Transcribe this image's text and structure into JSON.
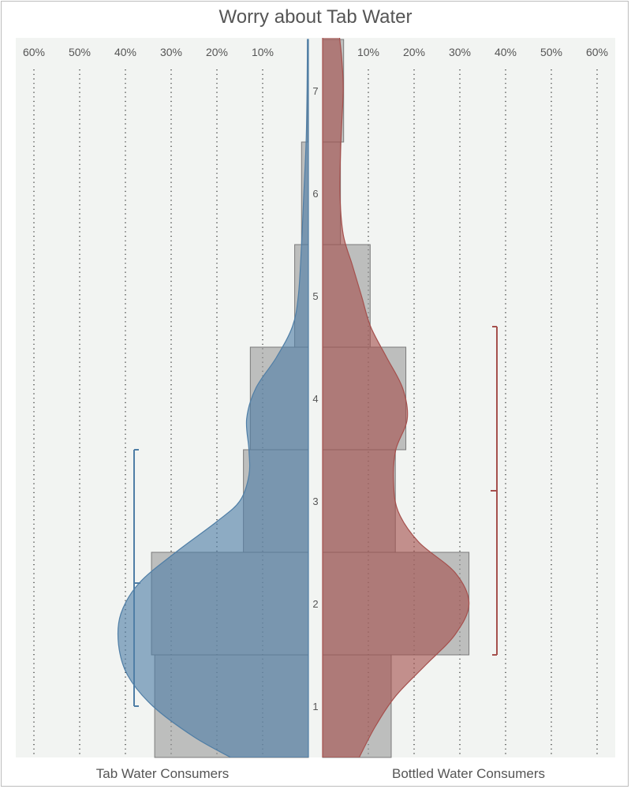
{
  "chart_data": {
    "type": "bar",
    "title": "Worry about Tab Water",
    "categories": [
      "1",
      "2",
      "3",
      "4",
      "5",
      "6",
      "7"
    ],
    "x_ticks_left": [
      "60%",
      "50%",
      "40%",
      "30%",
      "20%",
      "10%"
    ],
    "x_ticks_right": [
      "10%",
      "20%",
      "30%",
      "40%",
      "50%",
      "60%"
    ],
    "xlim": [
      0,
      60
    ],
    "grid": true,
    "series": [
      {
        "name": "Tab Water Consumers",
        "color": "#4f7ea6",
        "values": [
          33.6,
          34.3,
          14.2,
          12.7,
          3.0,
          1.5,
          0.2
        ],
        "mean": 2.2,
        "range": [
          1,
          3.5
        ]
      },
      {
        "name": "Bottled Water Consumers",
        "color": "#a5504d",
        "values": [
          15.0,
          32.0,
          15.9,
          18.2,
          10.4,
          3.9,
          4.6
        ],
        "mean": 3.1,
        "range": [
          1.5,
          4.7
        ]
      }
    ],
    "density_series": [
      {
        "points": [
          [
            0.5,
            17
          ],
          [
            0.7,
            25
          ],
          [
            1.0,
            34
          ],
          [
            1.3,
            39.5
          ],
          [
            1.6,
            41.5
          ],
          [
            1.9,
            41
          ],
          [
            2.2,
            37
          ],
          [
            2.5,
            29
          ],
          [
            2.8,
            20
          ],
          [
            3.0,
            15
          ],
          [
            3.25,
            13
          ],
          [
            3.5,
            13
          ],
          [
            3.8,
            13.5
          ],
          [
            4.1,
            11.5
          ],
          [
            4.4,
            7
          ],
          [
            4.7,
            3.5
          ],
          [
            5.0,
            2.2
          ],
          [
            5.5,
            1.5
          ],
          [
            6.0,
            1.0
          ],
          [
            6.5,
            0.5
          ],
          [
            7.0,
            0.3
          ],
          [
            7.5,
            0.2
          ]
        ]
      },
      {
        "points": [
          [
            0.5,
            8
          ],
          [
            0.8,
            11.5
          ],
          [
            1.1,
            16
          ],
          [
            1.4,
            22.5
          ],
          [
            1.7,
            29
          ],
          [
            2.0,
            32
          ],
          [
            2.3,
            29
          ],
          [
            2.6,
            21
          ],
          [
            2.9,
            16.5
          ],
          [
            3.2,
            15.5
          ],
          [
            3.5,
            16
          ],
          [
            3.8,
            18.5
          ],
          [
            4.1,
            17.5
          ],
          [
            4.4,
            14
          ],
          [
            4.7,
            10.5
          ],
          [
            5.0,
            8.5
          ],
          [
            5.3,
            6.5
          ],
          [
            5.6,
            4.5
          ],
          [
            6.0,
            3.8
          ],
          [
            6.5,
            4.0
          ],
          [
            7.0,
            4.5
          ],
          [
            7.3,
            4.2
          ],
          [
            7.6,
            3.5
          ]
        ]
      }
    ]
  }
}
